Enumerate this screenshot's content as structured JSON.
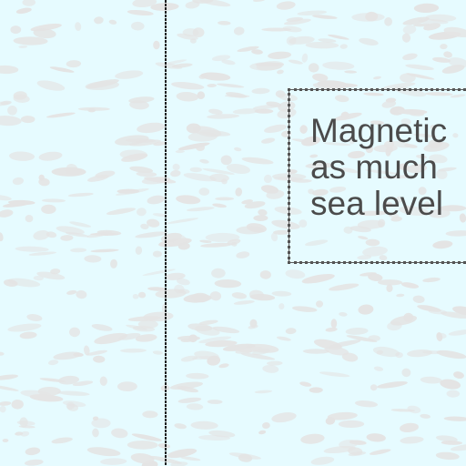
{
  "map": {
    "background_color": "#e6fbff",
    "texture_color": "#e4e4e4",
    "boundary_line_color": "#1f1f1f",
    "note_border_color": "#4f4f4f",
    "note_text_color": "#4b4b4b",
    "note": {
      "lines": [
        "Magnetic",
        "as much",
        "sea level"
      ]
    }
  }
}
